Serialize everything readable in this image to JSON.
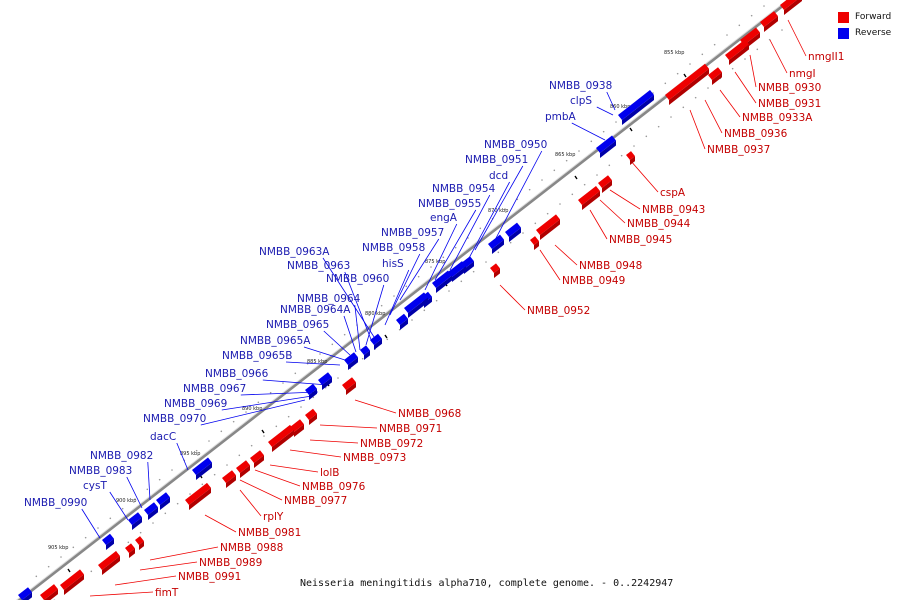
{
  "legend": {
    "forward": {
      "label": "Forward",
      "color": "#ee0000"
    },
    "reverse": {
      "label": "Reverse",
      "color": "#0000ee"
    }
  },
  "caption": "Neisseria meningitidis alpha710, complete genome. - 0..2242947",
  "ticks": [
    "855 kbp",
    "860 kbp",
    "865 kbp",
    "870 kbp",
    "875 kbp",
    "880 kbp",
    "885 kbp",
    "890 kbp",
    "895 kbp",
    "900 kbp",
    "905 kbp"
  ],
  "forward_genes": [
    "nmgII1",
    "nmgI",
    "NMBB_0930",
    "NMBB_0931",
    "NMBB_0933A",
    "NMBB_0936",
    "NMBB_0937",
    "cspA",
    "NMBB_0943",
    "NMBB_0944",
    "NMBB_0945",
    "NMBB_0948",
    "NMBB_0949",
    "NMBB_0952",
    "NMBB_0968",
    "NMBB_0971",
    "NMBB_0972",
    "NMBB_0973",
    "lolB",
    "NMBB_0976",
    "NMBB_0977",
    "rplY",
    "NMBB_0981",
    "NMBB_0988",
    "NMBB_0989",
    "NMBB_0991",
    "fimT"
  ],
  "reverse_genes": [
    "NMBB_0938",
    "clpS",
    "pmbA",
    "NMBB_0950",
    "NMBB_0951",
    "dcd",
    "NMBB_0954",
    "NMBB_0955",
    "engA",
    "NMBB_0957",
    "NMBB_0958",
    "hisS",
    "NMBB_0963A",
    "NMBB_0963",
    "NMBB_0960",
    "NMBB_0964",
    "NMBB_0964A",
    "NMBB_0965",
    "NMBB_0965A",
    "NMBB_0965B",
    "NMBB_0966",
    "NMBB_0967",
    "NMBB_0969",
    "NMBB_0970",
    "dacC",
    "NMBB_0982",
    "NMBB_0983",
    "cysT",
    "NMBB_0990"
  ]
}
